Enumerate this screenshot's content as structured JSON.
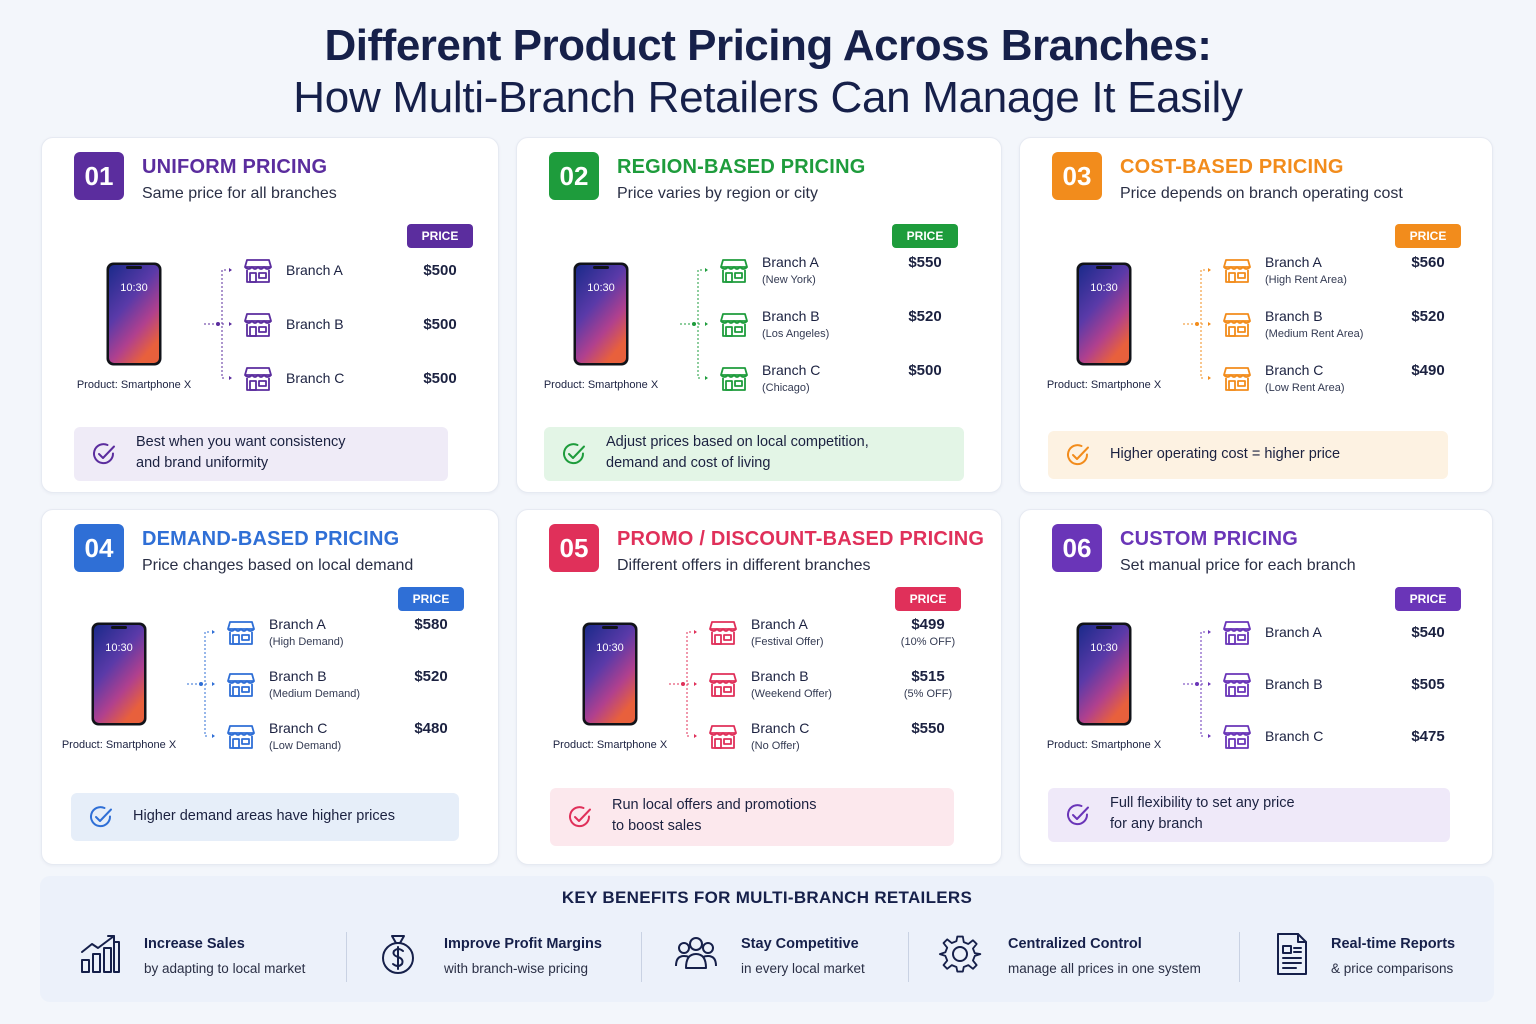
{
  "header": {
    "title_line1": "Different Product Pricing Across Branches:",
    "title_line2": "How Multi-Branch Retailers Can Manage It Easily"
  },
  "price_tag_label": "PRICE",
  "phone_time": "10:30",
  "product_label": "Product: Smartphone X",
  "cards": [
    {
      "number": "01",
      "title": "UNIFORM PRICING",
      "subtitle": "Same price for all branches",
      "color": "#5b2d9e",
      "note_bg": "#efebf7",
      "branches": [
        {
          "name": "Branch A",
          "note": "",
          "price": "$500",
          "price_note": ""
        },
        {
          "name": "Branch B",
          "note": "",
          "price": "$500",
          "price_note": ""
        },
        {
          "name": "Branch C",
          "note": "",
          "price": "$500",
          "price_note": ""
        }
      ],
      "note_lines": [
        "Best when you want consistency",
        "and brand uniformity"
      ]
    },
    {
      "number": "02",
      "title": "REGION-BASED PRICING",
      "subtitle": "Price varies by region or city",
      "color": "#1e9c3c",
      "note_bg": "#e3f5e6",
      "branches": [
        {
          "name": "Branch A",
          "note": "(New York)",
          "price": "$550",
          "price_note": ""
        },
        {
          "name": "Branch B",
          "note": "(Los Angeles)",
          "price": "$520",
          "price_note": ""
        },
        {
          "name": "Branch C",
          "note": "(Chicago)",
          "price": "$500",
          "price_note": ""
        }
      ],
      "note_lines": [
        "Adjust prices based on local competition,",
        "demand and cost of living"
      ]
    },
    {
      "number": "03",
      "title": "COST-BASED PRICING",
      "subtitle": "Price depends on branch operating cost",
      "color": "#f28c1c",
      "note_bg": "#fdf2e2",
      "branches": [
        {
          "name": "Branch A",
          "note": "(High Rent Area)",
          "price": "$560",
          "price_note": ""
        },
        {
          "name": "Branch B",
          "note": "(Medium Rent Area)",
          "price": "$520",
          "price_note": ""
        },
        {
          "name": "Branch C",
          "note": "(Low Rent Area)",
          "price": "$490",
          "price_note": ""
        }
      ],
      "note_lines": [
        "Higher operating cost = higher price"
      ]
    },
    {
      "number": "04",
      "title": "DEMAND-BASED PRICING",
      "subtitle": "Price changes based on local demand",
      "color": "#2f6fd6",
      "note_bg": "#e6eef9",
      "branches": [
        {
          "name": "Branch A",
          "note": "(High Demand)",
          "price": "$580",
          "price_note": ""
        },
        {
          "name": "Branch B",
          "note": "(Medium Demand)",
          "price": "$520",
          "price_note": ""
        },
        {
          "name": "Branch C",
          "note": "(Low Demand)",
          "price": "$480",
          "price_note": ""
        }
      ],
      "note_lines": [
        "Higher demand areas have higher prices"
      ]
    },
    {
      "number": "05",
      "title": "PROMO / DISCOUNT-BASED PRICING",
      "subtitle": "Different offers in different branches",
      "color": "#e0305a",
      "note_bg": "#fce8ed",
      "branches": [
        {
          "name": "Branch A",
          "note": "(Festival Offer)",
          "price": "$499",
          "price_note": "(10% OFF)"
        },
        {
          "name": "Branch B",
          "note": "(Weekend Offer)",
          "price": "$515",
          "price_note": "(5% OFF)"
        },
        {
          "name": "Branch C",
          "note": "(No Offer)",
          "price": "$550",
          "price_note": ""
        }
      ],
      "note_lines": [
        "Run local offers and promotions",
        "to boost sales"
      ]
    },
    {
      "number": "06",
      "title": "CUSTOM PRICING",
      "subtitle": "Set manual price for each branch",
      "color": "#6a35b8",
      "note_bg": "#efe9f9",
      "branches": [
        {
          "name": "Branch A",
          "note": "",
          "price": "$540",
          "price_note": ""
        },
        {
          "name": "Branch B",
          "note": "",
          "price": "$505",
          "price_note": ""
        },
        {
          "name": "Branch C",
          "note": "",
          "price": "$475",
          "price_note": ""
        }
      ],
      "note_lines": [
        "Full flexibility to set any price",
        "for any branch"
      ]
    }
  ],
  "benefits": {
    "title": "KEY BENEFITS FOR MULTI-BRANCH RETAILERS",
    "items": [
      {
        "icon": "bar-chart-growth-icon",
        "title": "Increase Sales",
        "desc": "by adapting to local market"
      },
      {
        "icon": "money-bag-icon",
        "title": "Improve Profit Margins",
        "desc": "with branch-wise pricing"
      },
      {
        "icon": "users-group-icon",
        "title": "Stay Competitive",
        "desc": "in every local market"
      },
      {
        "icon": "gear-icon",
        "title": "Centralized Control",
        "desc": "manage all prices in one system"
      },
      {
        "icon": "report-document-icon",
        "title": "Real-time Reports",
        "desc": "& price comparisons"
      }
    ]
  }
}
